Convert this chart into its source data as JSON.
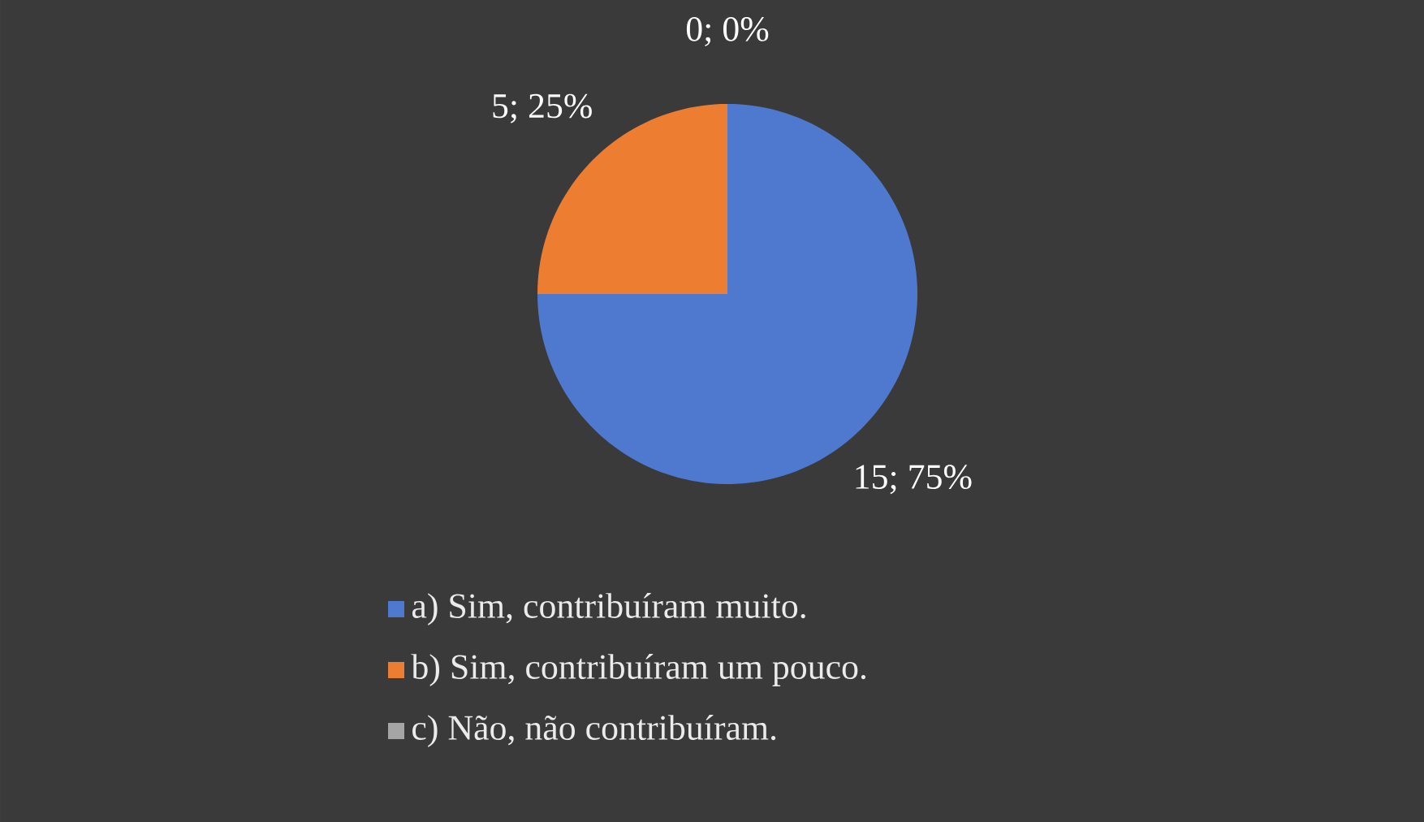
{
  "chart_data": {
    "type": "pie",
    "categories": [
      "a) Sim, contribuíram muito.",
      "b) Sim, contribuíram um pouco.",
      "c) Não, não contribuíram."
    ],
    "values": [
      15,
      5,
      0
    ],
    "colors": [
      "#4f79cf",
      "#ed7d31",
      "#a5a5a5"
    ],
    "value_labels": [
      "15; 75%",
      "5; 25%",
      "0; 0%"
    ],
    "legend": "bottom"
  }
}
